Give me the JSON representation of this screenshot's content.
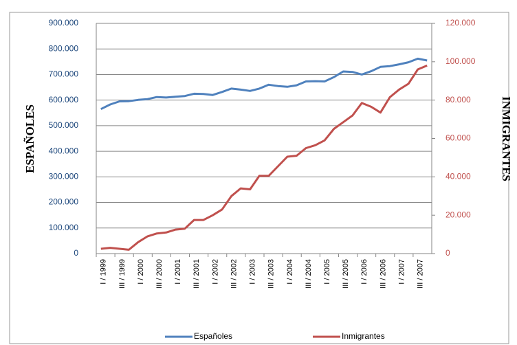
{
  "chart_data": {
    "type": "line",
    "categories": [
      "I / 1999",
      null,
      "III / 1999",
      null,
      "I / 2000",
      null,
      "III / 2000",
      null,
      "I / 2001",
      null,
      "III / 2001",
      null,
      "I / 2002",
      null,
      "III / 2002",
      null,
      "I / 2003",
      null,
      "III / 2003",
      null,
      "I / 2004",
      null,
      "III / 2004",
      null,
      "I / 2005",
      null,
      "III / 2005",
      null,
      "I / 2006",
      null,
      "III / 2006",
      null,
      "I / 2007",
      null,
      "III / 2007",
      null
    ],
    "series": [
      {
        "name": "Españoles",
        "color": "#4f81bd",
        "values": [
          565000,
          583000,
          595000,
          596000,
          601000,
          604000,
          612000,
          610000,
          613000,
          616000,
          625000,
          624000,
          620000,
          632000,
          645000,
          641000,
          636000,
          645000,
          660000,
          655000,
          652000,
          658000,
          673000,
          674000,
          673000,
          690000,
          712000,
          710000,
          700000,
          713000,
          730000,
          733000,
          740000,
          748000,
          762000,
          755000
        ]
      },
      {
        "name": "Inmigrantes",
        "color": "#c0504d",
        "axis": "y2",
        "values": [
          2500,
          3000,
          2500,
          2000,
          6000,
          9000,
          10500,
          11000,
          12500,
          13000,
          17500,
          17500,
          20000,
          23000,
          30000,
          34000,
          33500,
          40500,
          40500,
          45500,
          50500,
          51000,
          55000,
          56500,
          59000,
          65000,
          68500,
          72000,
          78500,
          76500,
          73500,
          81500,
          85500,
          88500,
          96000,
          98000
        ]
      }
    ],
    "y_label": "ESPAÑOLES",
    "y2_label": "INMIGRANTES",
    "ylim": [
      0,
      900000
    ],
    "yticks": [
      0,
      {
        "value": 100000,
        "label": "100.000"
      },
      {
        "value": 200000,
        "label": "200.000"
      },
      {
        "value": 300000,
        "label": "300.000"
      },
      {
        "value": 400000,
        "label": "400.000"
      },
      {
        "value": 500000,
        "label": "500.000"
      },
      {
        "value": 600000,
        "label": "600.000"
      },
      {
        "value": 700000,
        "label": "700.000"
      },
      {
        "value": 800000,
        "label": "800.000"
      },
      {
        "value": 900000,
        "label": "900.000"
      }
    ],
    "y2lim": [
      0,
      120000
    ],
    "y2ticks": [
      0,
      {
        "value": 20000,
        "label": "20.000"
      },
      {
        "value": 40000,
        "label": "40.000"
      },
      {
        "value": 60000,
        "label": "60.000"
      },
      {
        "value": 80000,
        "label": "80.000"
      },
      {
        "value": 100000,
        "label": "100.000"
      },
      {
        "value": 120000,
        "label": "120.000"
      }
    ],
    "grid": true,
    "legend": "bottom"
  }
}
